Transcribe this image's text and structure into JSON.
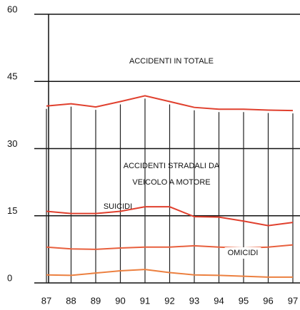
{
  "chart_data": {
    "type": "line",
    "categories": [
      "87",
      "88",
      "89",
      "90",
      "91",
      "92",
      "93",
      "94",
      "95",
      "96",
      "97"
    ],
    "series": [
      {
        "color": "#e0402e",
        "values": [
          39.5,
          40,
          39.3,
          40.5,
          41.8,
          40.5,
          39.2,
          38.8,
          38.8,
          38.6,
          38.5
        ]
      },
      {
        "color": "#e0402e",
        "values": [
          16,
          15.5,
          15.5,
          16,
          17,
          17,
          14.8,
          14.7,
          13.8,
          12.8,
          13.5
        ]
      },
      {
        "color": "#e8603e",
        "values": [
          8,
          7.6,
          7.5,
          7.8,
          8,
          8,
          8.3,
          8,
          7.8,
          8,
          8.5
        ]
      },
      {
        "color": "#ec8040",
        "values": [
          1.8,
          1.7,
          2.2,
          2.7,
          3,
          2.3,
          1.8,
          1.7,
          1.5,
          1.3,
          1.3
        ]
      }
    ],
    "annotations": [
      "ACCIDENTI IN TOTALE",
      "ACCIDENTI STRADALI DA",
      "VEICOLO A MOTORE",
      "SUICIDI",
      "OMICIDI"
    ],
    "ylim": [
      0,
      60
    ],
    "yticks": [
      0,
      15,
      30,
      45,
      60
    ],
    "grid": true
  }
}
